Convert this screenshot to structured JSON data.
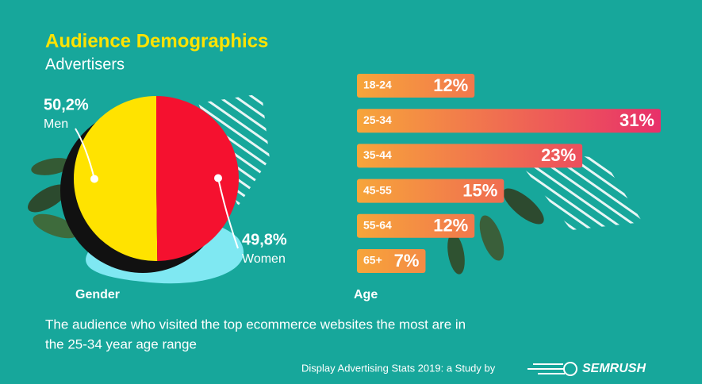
{
  "header": {
    "title": "Audience Demographics",
    "subtitle": "Advertisers"
  },
  "chart_data": [
    {
      "type": "pie",
      "title": "Gender",
      "categories": [
        "Men",
        "Women"
      ],
      "values": [
        50.2,
        49.8
      ],
      "value_labels": [
        "50,2%",
        "49,8%"
      ],
      "colors": [
        "#ffe300",
        "#f5112f"
      ]
    },
    {
      "type": "hbar",
      "title": "Age",
      "categories": [
        "18-24",
        "25-34",
        "35-44",
        "45-55",
        "55-64",
        "65+"
      ],
      "values": [
        12,
        31,
        23,
        15,
        12,
        7
      ],
      "value_labels": [
        "12%",
        "31%",
        "23%",
        "15%",
        "12%",
        "7%"
      ],
      "colors": [
        "#f7a53a",
        "#e8306a"
      ]
    }
  ],
  "description": [
    "The audience who visited the top ecommerce websites the most are in",
    "the 25-34 year age range"
  ],
  "footer": {
    "text": "Display Advertising Stats 2019: a Study by",
    "brand": "SEMRUSH"
  }
}
